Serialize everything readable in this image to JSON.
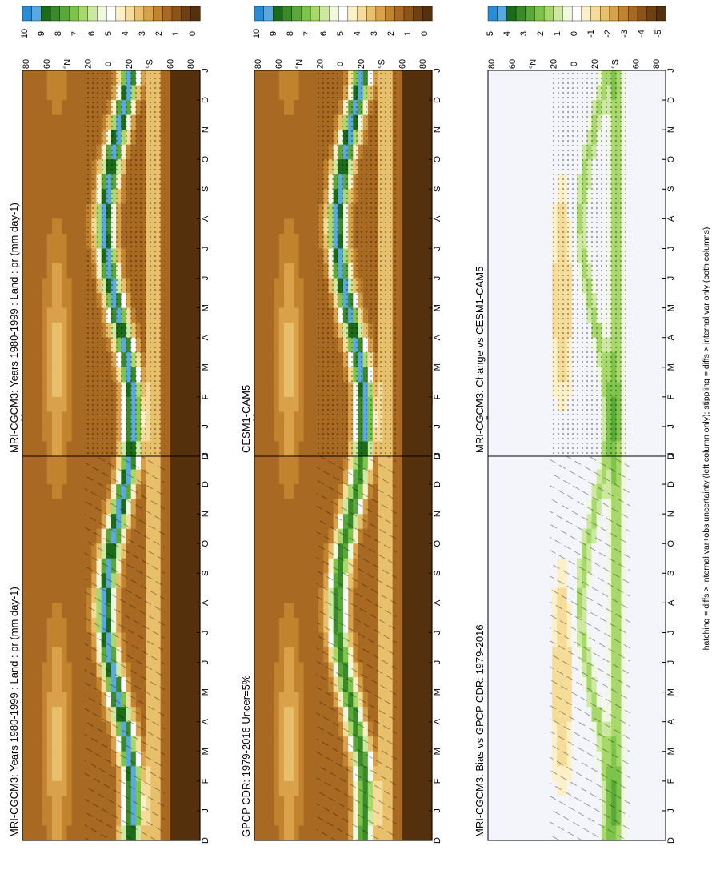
{
  "figure": {
    "footnote": "hatching = diffs > internal var+obs uncertainty (left column only); stippling = diffs > internal var only (both columns)"
  },
  "chart_data": [
    {
      "type": "heatmap",
      "title": "MRI-CGCM3: Years 1980-1999 : Land : pr (mm day-1)",
      "x_ticks": [
        "D",
        "J",
        "F",
        "M",
        "A",
        "M",
        "J",
        "J",
        "A",
        "S",
        "O",
        "N",
        "D",
        "J"
      ],
      "y_ticks": [
        "80",
        "60",
        "°N",
        "20",
        "0",
        "20",
        "°S",
        "60",
        "80"
      ],
      "colorbar_ticks": [
        "10",
        "9",
        "8",
        "7",
        "6",
        "5",
        "4",
        "3",
        "2",
        "1",
        "0"
      ],
      "pattern": "model",
      "overlay": "hatching",
      "axis_title": ""
    },
    {
      "type": "heatmap",
      "title": "MRI-CGCM3: Years 1980-1999 : Land : pr (mm day-1)",
      "x_ticks": [
        "D",
        "J",
        "F",
        "M",
        "A",
        "M",
        "J",
        "J",
        "A",
        "S",
        "O",
        "N",
        "D",
        "J"
      ],
      "y_ticks": [
        "80",
        "60",
        "°N",
        "20",
        "0",
        "20",
        "°S",
        "60",
        "80"
      ],
      "colorbar_ticks": [
        "10",
        "9",
        "8",
        "7",
        "6",
        "5",
        "4",
        "3",
        "2",
        "1",
        "0"
      ],
      "pattern": "model",
      "overlay": "stippling"
    },
    {
      "type": "heatmap",
      "title": "GPCP CDR: 1979-2016 Uncer=5%",
      "x_ticks": [
        "D",
        "J",
        "F",
        "M",
        "A",
        "M",
        "J",
        "J",
        "A",
        "S",
        "O",
        "N",
        "D",
        "J"
      ],
      "y_ticks": [
        "80",
        "60",
        "°N",
        "20",
        "0",
        "20",
        "°S",
        "60",
        "80"
      ],
      "colorbar_ticks": [
        "10",
        "9",
        "8",
        "7",
        "6",
        "5",
        "4",
        "3",
        "2",
        "1",
        "0"
      ],
      "pattern": "obs",
      "overlay": "hatching"
    },
    {
      "type": "heatmap",
      "title": "CESM1-CAM5",
      "x_ticks": [
        "D",
        "J",
        "F",
        "M",
        "A",
        "M",
        "J",
        "J",
        "A",
        "S",
        "O",
        "N",
        "D",
        "J"
      ],
      "y_ticks": [
        "80",
        "60",
        "°N",
        "20",
        "0",
        "20",
        "°S",
        "60",
        "80"
      ],
      "colorbar_ticks": [
        "10",
        "9",
        "8",
        "7",
        "6",
        "5",
        "4",
        "3",
        "2",
        "1",
        "0"
      ],
      "pattern": "cesm",
      "overlay": "stippling"
    },
    {
      "type": "heatmap",
      "title": "MRI-CGCM3: Bias vs GPCP CDR: 1979-2016",
      "x_ticks": [
        "D",
        "J",
        "F",
        "M",
        "A",
        "M",
        "J",
        "J",
        "A",
        "S",
        "O",
        "N",
        "D",
        "J"
      ],
      "y_ticks": [
        "80",
        "60",
        "°N",
        "20",
        "0",
        "20",
        "°S",
        "60",
        "80"
      ],
      "colorbar_ticks": [
        "5",
        "4",
        "3",
        "2",
        "1",
        "0",
        "-1",
        "-2",
        "-3",
        "-4",
        "-5"
      ],
      "pattern": "diff",
      "overlay": "hatching"
    },
    {
      "type": "heatmap",
      "title": "MRI-CGCM3: Change vs CESM1-CAM5",
      "x_ticks": [
        "D",
        "J",
        "F",
        "M",
        "A",
        "M",
        "J",
        "J",
        "A",
        "S",
        "O",
        "N",
        "D",
        "J"
      ],
      "y_ticks": [
        "80",
        "60",
        "°N",
        "20",
        "0",
        "20",
        "°S",
        "60",
        "80"
      ],
      "colorbar_ticks": [
        "5",
        "4",
        "3",
        "2",
        "1",
        "0",
        "-1",
        "-2",
        "-3",
        "-4",
        "-5"
      ],
      "pattern": "diff2",
      "overlay": "stippling"
    }
  ],
  "colorbar_colors": [
    "#2b8cd6",
    "#5aa8e0",
    "#1b6b1b",
    "#3a8a2a",
    "#5aa83a",
    "#7cc44a",
    "#a6d96a",
    "#cde9a0",
    "#f0f9e0",
    "#ffffff",
    "#fbf0c8",
    "#f5dc98",
    "#e8bf6a",
    "#d9a24a",
    "#c2832e",
    "#a86a22",
    "#8c5418",
    "#6e4012",
    "#54300c"
  ]
}
